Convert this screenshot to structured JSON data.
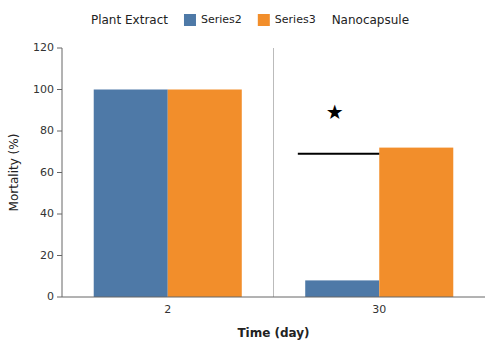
{
  "chart_data": {
    "type": "bar",
    "categories": [
      "2",
      "30"
    ],
    "series": [
      {
        "name": "Series2",
        "values": [
          100,
          8
        ]
      },
      {
        "name": "Series3",
        "values": [
          100,
          72
        ]
      }
    ],
    "xlabel": "Time (day)",
    "ylabel": "Mortality (%)",
    "ylim": [
      0,
      120
    ],
    "yticks": [
      0,
      20,
      40,
      60,
      80,
      100,
      120
    ],
    "grid": false,
    "legend": "top",
    "annotations": [
      {
        "text": "Plant Extract"
      },
      {
        "text": "Nanocapsule"
      },
      {
        "text": "★",
        "x": "30",
        "y": 86
      }
    ],
    "lines": [
      {
        "x": "30",
        "y": 69
      }
    ]
  }
}
